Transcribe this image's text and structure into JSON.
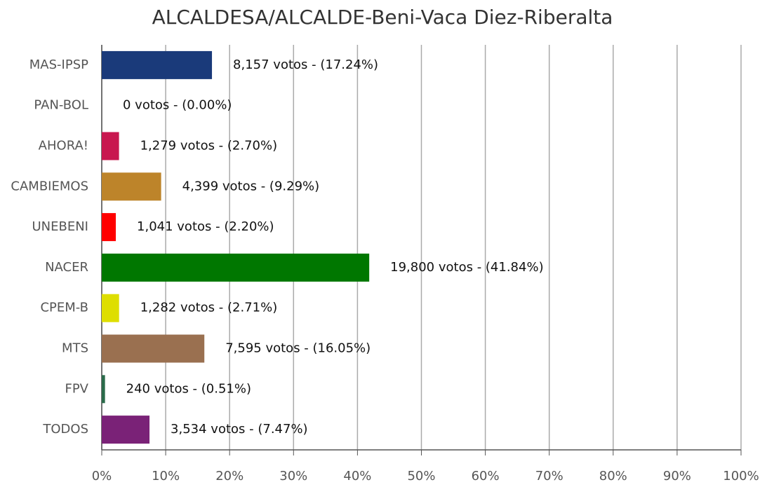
{
  "chart_data": {
    "type": "hbar",
    "title": "ALCALDESA/ALCALDE-Beni-Vaca Diez-Riberalta",
    "categories": [
      "MAS-IPSP",
      "PAN-BOL",
      "AHORA!",
      "CAMBIEMOS",
      "UNEBENI",
      "NACER",
      "CPEM-B",
      "MTS",
      "FPV",
      "TODOS"
    ],
    "values": [
      17.24,
      0,
      2.7,
      9.29,
      2.2,
      41.84,
      2.71,
      16.05,
      0.51,
      7.47
    ],
    "value_labels": [
      "8,157 votos - (17.24%)",
      "0 votos - (0.00%)",
      "1,279 votos - (2.70%)",
      "4,399 votos - (9.29%)",
      "1,041 votos - (2.20%)",
      "19,800 votos - (41.84%)",
      "1,282 votos - (2.71%)",
      "7,595 votos - (16.05%)",
      "240 votos - (0.51%)",
      "3,534 votos - (7.47%)"
    ],
    "colors": [
      "#1a3a7a",
      "#444444",
      "#c8174f",
      "#bd842a",
      "#ff0000",
      "#007700",
      "#dede00",
      "#9a7050",
      "#2a6b4a",
      "#7a2277"
    ],
    "xlim": [
      0,
      100
    ],
    "xticks": [
      {
        "value": 0,
        "label": "0%"
      },
      {
        "value": 10,
        "label": "10%"
      },
      {
        "value": 20,
        "label": "20%"
      },
      {
        "value": 30,
        "label": "30%"
      },
      {
        "value": 40,
        "label": "40%"
      },
      {
        "value": 50,
        "label": "50%"
      },
      {
        "value": 60,
        "label": "60%"
      },
      {
        "value": 70,
        "label": "70%"
      },
      {
        "value": 80,
        "label": "80%"
      },
      {
        "value": 90,
        "label": "90%"
      },
      {
        "value": 100,
        "label": "100%"
      }
    ],
    "grid": true
  }
}
